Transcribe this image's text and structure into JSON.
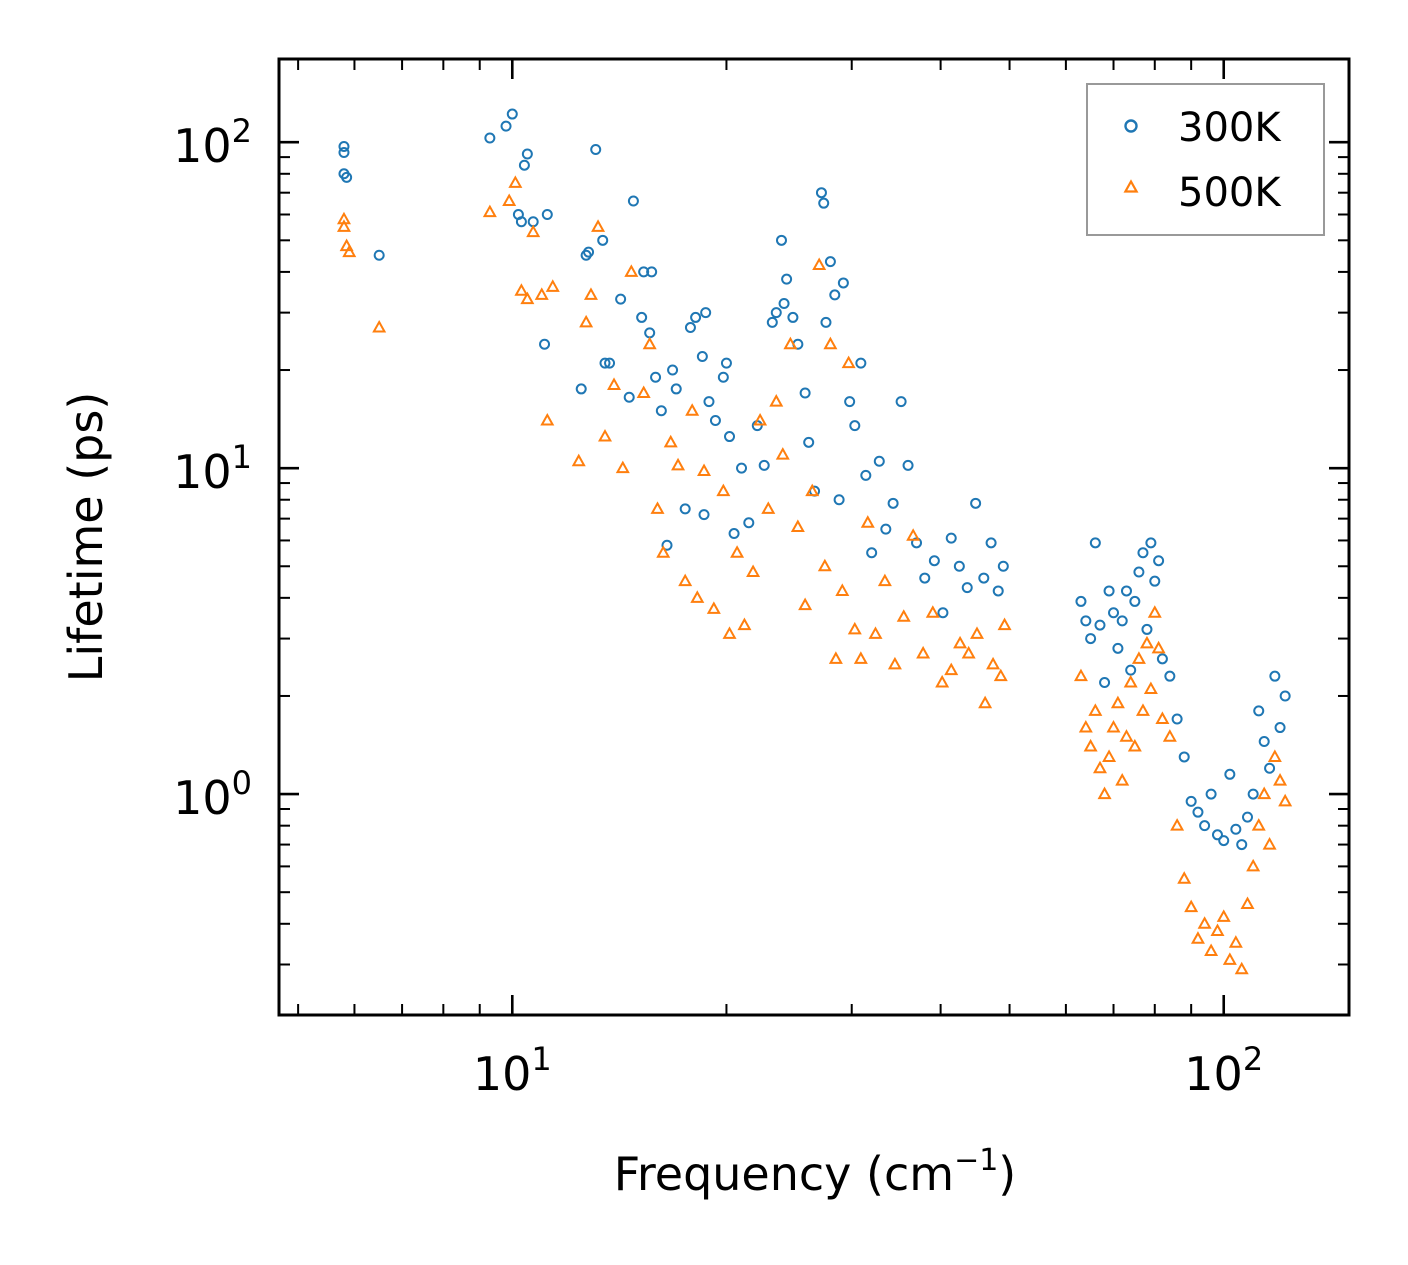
{
  "chart_data": {
    "type": "scatter",
    "xscale": "log",
    "yscale": "log",
    "xlabel": "Frequency (cm",
    "xlabel_sup": "−1",
    "xlabel_close": ")",
    "ylabel": "Lifetime (ps)",
    "xlim": [
      4.7,
      150
    ],
    "ylim": [
      0.21,
      180
    ],
    "x_major_ticks": [
      {
        "value": 10,
        "base": "10",
        "exp": "1"
      },
      {
        "value": 100,
        "base": "10",
        "exp": "2"
      }
    ],
    "y_major_ticks": [
      {
        "value": 1,
        "base": "10",
        "exp": "0"
      },
      {
        "value": 10,
        "base": "10",
        "exp": "1"
      },
      {
        "value": 100,
        "base": "10",
        "exp": "2"
      }
    ],
    "legend_position": "top-right",
    "series": [
      {
        "name": "300K",
        "marker": "circle",
        "color": "#1f77b4",
        "points": [
          [
            5.8,
            97
          ],
          [
            5.8,
            93
          ],
          [
            5.8,
            80
          ],
          [
            5.85,
            78
          ],
          [
            6.5,
            45
          ],
          [
            9.3,
            103
          ],
          [
            9.8,
            112
          ],
          [
            10.0,
            122
          ],
          [
            10.2,
            60
          ],
          [
            10.3,
            57
          ],
          [
            10.4,
            85
          ],
          [
            10.5,
            92
          ],
          [
            10.7,
            57
          ],
          [
            11.1,
            24
          ],
          [
            11.2,
            60
          ],
          [
            12.5,
            17.5
          ],
          [
            12.7,
            45
          ],
          [
            12.8,
            46
          ],
          [
            13.1,
            95
          ],
          [
            13.4,
            50
          ],
          [
            13.5,
            21
          ],
          [
            13.7,
            21
          ],
          [
            14.2,
            33
          ],
          [
            14.6,
            16.5
          ],
          [
            14.8,
            66
          ],
          [
            15.2,
            29
          ],
          [
            15.3,
            40
          ],
          [
            15.6,
            26
          ],
          [
            15.7,
            40
          ],
          [
            15.9,
            19
          ],
          [
            16.2,
            15
          ],
          [
            16.5,
            5.8
          ],
          [
            16.8,
            20
          ],
          [
            17.0,
            17.5
          ],
          [
            17.5,
            7.5
          ],
          [
            17.8,
            27
          ],
          [
            18.1,
            29
          ],
          [
            18.5,
            22
          ],
          [
            18.6,
            7.2
          ],
          [
            18.7,
            30
          ],
          [
            18.9,
            16
          ],
          [
            19.3,
            14
          ],
          [
            19.8,
            19
          ],
          [
            20.0,
            21
          ],
          [
            20.2,
            12.5
          ],
          [
            20.5,
            6.3
          ],
          [
            21.0,
            10
          ],
          [
            21.5,
            6.8
          ],
          [
            22.1,
            13.5
          ],
          [
            22.6,
            10.2
          ],
          [
            23.2,
            28
          ],
          [
            23.5,
            30
          ],
          [
            23.9,
            50
          ],
          [
            24.1,
            32
          ],
          [
            24.3,
            38
          ],
          [
            24.8,
            29
          ],
          [
            25.2,
            24
          ],
          [
            25.8,
            17
          ],
          [
            26.1,
            12
          ],
          [
            26.6,
            8.5
          ],
          [
            27.2,
            70
          ],
          [
            27.4,
            65
          ],
          [
            27.6,
            28
          ],
          [
            28.0,
            43
          ],
          [
            28.4,
            34
          ],
          [
            28.8,
            8
          ],
          [
            29.2,
            37
          ],
          [
            29.8,
            16
          ],
          [
            30.3,
            13.5
          ],
          [
            30.9,
            21
          ],
          [
            31.4,
            9.5
          ],
          [
            32.0,
            5.5
          ],
          [
            32.8,
            10.5
          ],
          [
            33.5,
            6.5
          ],
          [
            34.3,
            7.8
          ],
          [
            35.2,
            16
          ],
          [
            36.0,
            10.2
          ],
          [
            37.0,
            5.9
          ],
          [
            38.0,
            4.6
          ],
          [
            39.2,
            5.2
          ],
          [
            40.3,
            3.6
          ],
          [
            41.4,
            6.1
          ],
          [
            42.5,
            5
          ],
          [
            43.6,
            4.3
          ],
          [
            44.8,
            7.8
          ],
          [
            46.0,
            4.6
          ],
          [
            47.1,
            5.9
          ],
          [
            48.2,
            4.2
          ],
          [
            49.0,
            5.0
          ],
          [
            63.0,
            3.9
          ],
          [
            64.0,
            3.4
          ],
          [
            65.0,
            3.0
          ],
          [
            66.0,
            5.9
          ],
          [
            67.0,
            3.3
          ],
          [
            68.0,
            2.2
          ],
          [
            69.0,
            4.2
          ],
          [
            70.0,
            3.6
          ],
          [
            71.0,
            2.8
          ],
          [
            72.0,
            3.4
          ],
          [
            73.0,
            4.2
          ],
          [
            74.0,
            2.4
          ],
          [
            75.0,
            3.9
          ],
          [
            76.0,
            4.8
          ],
          [
            77.0,
            5.5
          ],
          [
            78.0,
            3.2
          ],
          [
            79.0,
            5.9
          ],
          [
            80.0,
            4.5
          ],
          [
            81.0,
            5.2
          ],
          [
            82.0,
            2.6
          ],
          [
            84.0,
            2.3
          ],
          [
            86.0,
            1.7
          ],
          [
            88.0,
            1.3
          ],
          [
            90.0,
            0.95
          ],
          [
            92.0,
            0.88
          ],
          [
            94.0,
            0.8
          ],
          [
            96.0,
            1.0
          ],
          [
            98.0,
            0.75
          ],
          [
            100.0,
            0.72
          ],
          [
            102.0,
            1.15
          ],
          [
            104.0,
            0.78
          ],
          [
            106.0,
            0.7
          ],
          [
            108.0,
            0.85
          ],
          [
            110.0,
            1.0
          ],
          [
            112.0,
            1.8
          ],
          [
            114.0,
            1.45
          ],
          [
            116.0,
            1.2
          ],
          [
            118.0,
            2.3
          ],
          [
            120.0,
            1.6
          ],
          [
            122.0,
            2.0
          ]
        ]
      },
      {
        "name": "500K",
        "marker": "triangle",
        "color": "#ff7f0e",
        "points": [
          [
            5.8,
            58
          ],
          [
            5.8,
            55
          ],
          [
            5.85,
            48
          ],
          [
            5.9,
            46
          ],
          [
            6.5,
            27
          ],
          [
            9.3,
            61
          ],
          [
            9.9,
            66
          ],
          [
            10.1,
            75
          ],
          [
            10.3,
            35
          ],
          [
            10.5,
            33
          ],
          [
            10.7,
            53
          ],
          [
            11.0,
            34
          ],
          [
            11.2,
            14
          ],
          [
            11.4,
            36
          ],
          [
            12.4,
            10.5
          ],
          [
            12.7,
            28
          ],
          [
            12.9,
            34
          ],
          [
            13.2,
            55
          ],
          [
            13.5,
            12.5
          ],
          [
            13.9,
            18
          ],
          [
            14.3,
            10
          ],
          [
            14.7,
            40
          ],
          [
            15.3,
            17
          ],
          [
            15.6,
            24
          ],
          [
            16.0,
            7.5
          ],
          [
            16.3,
            5.5
          ],
          [
            16.7,
            12
          ],
          [
            17.1,
            10.2
          ],
          [
            17.5,
            4.5
          ],
          [
            17.9,
            15
          ],
          [
            18.2,
            4
          ],
          [
            18.6,
            9.8
          ],
          [
            19.2,
            3.7
          ],
          [
            19.8,
            8.5
          ],
          [
            20.2,
            3.1
          ],
          [
            20.7,
            5.5
          ],
          [
            21.2,
            3.3
          ],
          [
            21.8,
            4.8
          ],
          [
            22.3,
            14
          ],
          [
            22.9,
            7.5
          ],
          [
            23.5,
            16
          ],
          [
            24.0,
            11
          ],
          [
            24.6,
            24
          ],
          [
            25.2,
            6.6
          ],
          [
            25.8,
            3.8
          ],
          [
            26.4,
            8.5
          ],
          [
            27.0,
            42
          ],
          [
            27.5,
            5
          ],
          [
            28.0,
            24
          ],
          [
            28.5,
            2.6
          ],
          [
            29.1,
            4.2
          ],
          [
            29.7,
            21
          ],
          [
            30.3,
            3.2
          ],
          [
            30.9,
            2.6
          ],
          [
            31.6,
            6.8
          ],
          [
            32.4,
            3.1
          ],
          [
            33.4,
            4.5
          ],
          [
            34.5,
            2.5
          ],
          [
            35.5,
            3.5
          ],
          [
            36.6,
            6.2
          ],
          [
            37.8,
            2.7
          ],
          [
            39.0,
            3.6
          ],
          [
            40.2,
            2.2
          ],
          [
            41.4,
            2.4
          ],
          [
            42.6,
            2.9
          ],
          [
            43.8,
            2.7
          ],
          [
            45.0,
            3.1
          ],
          [
            46.2,
            1.9
          ],
          [
            47.4,
            2.5
          ],
          [
            48.6,
            2.3
          ],
          [
            49.2,
            3.3
          ],
          [
            63.0,
            2.3
          ],
          [
            64.0,
            1.6
          ],
          [
            65.0,
            1.4
          ],
          [
            66.0,
            1.8
          ],
          [
            67.0,
            1.2
          ],
          [
            68.0,
            1.0
          ],
          [
            69.0,
            1.3
          ],
          [
            70.0,
            1.6
          ],
          [
            71.0,
            1.9
          ],
          [
            72.0,
            1.1
          ],
          [
            73.0,
            1.5
          ],
          [
            74.0,
            2.2
          ],
          [
            75.0,
            1.4
          ],
          [
            76.0,
            2.6
          ],
          [
            77.0,
            1.8
          ],
          [
            78.0,
            2.9
          ],
          [
            79.0,
            2.1
          ],
          [
            80.0,
            3.6
          ],
          [
            81.0,
            2.8
          ],
          [
            82.0,
            1.7
          ],
          [
            84.0,
            1.5
          ],
          [
            86.0,
            0.8
          ],
          [
            88.0,
            0.55
          ],
          [
            90.0,
            0.45
          ],
          [
            92.0,
            0.36
          ],
          [
            94.0,
            0.4
          ],
          [
            96.0,
            0.33
          ],
          [
            98.0,
            0.38
          ],
          [
            100.0,
            0.42
          ],
          [
            102.0,
            0.31
          ],
          [
            104.0,
            0.35
          ],
          [
            106.0,
            0.29
          ],
          [
            108.0,
            0.46
          ],
          [
            110.0,
            0.6
          ],
          [
            112.0,
            0.8
          ],
          [
            114.0,
            1.0
          ],
          [
            116.0,
            0.7
          ],
          [
            118.0,
            1.3
          ],
          [
            120.0,
            1.1
          ],
          [
            122.0,
            0.95
          ]
        ]
      }
    ]
  }
}
